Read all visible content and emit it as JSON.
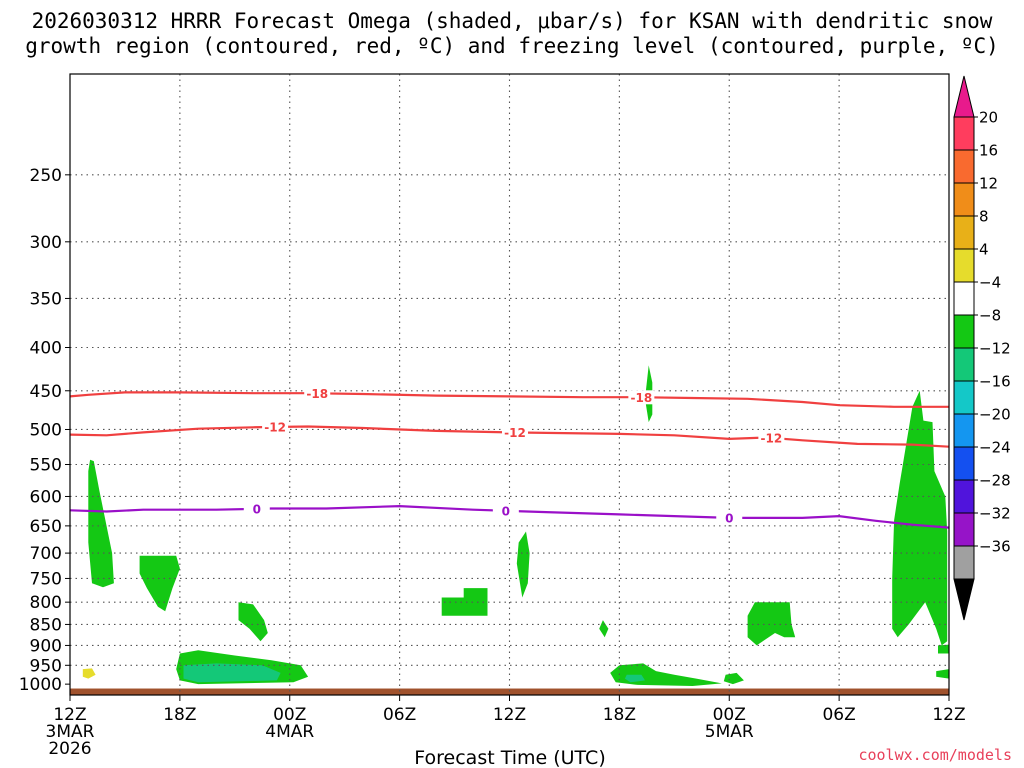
{
  "header": {
    "title_line1": "2026030312 HRRR Forecast Omega (shaded, μbar/s) for KSAN with dendritic snow",
    "title_line2": "growth region (contoured, red, ºC) and freezing level (contoured, purple, ºC)"
  },
  "footer": {
    "xlabel": "Forecast Time (UTC)",
    "credit": "coolwx.com/models"
  },
  "chart_data": {
    "type": "time-height cross section",
    "title": "2026030312 HRRR Forecast Omega (shaded, μbar/s) for KSAN with dendritic snow growth region (contoured, red, ºC) and freezing level (contoured, purple, ºC)",
    "xlabel": "Forecast Time (UTC)",
    "ylabel": "",
    "xlim_hours": [
      0,
      48
    ],
    "ylim_hPa": [
      1030,
      190
    ],
    "y_scale": "log-pressure",
    "grid": true,
    "y_ticks": [
      1000,
      950,
      900,
      850,
      800,
      750,
      700,
      650,
      600,
      550,
      500,
      450,
      400,
      350,
      300,
      250
    ],
    "x_ticks": [
      {
        "hour": 0,
        "label": "12Z",
        "sub": [
          "3MAR",
          "2026"
        ]
      },
      {
        "hour": 6,
        "label": "18Z",
        "sub": []
      },
      {
        "hour": 12,
        "label": "00Z",
        "sub": [
          "4MAR"
        ]
      },
      {
        "hour": 18,
        "label": "06Z",
        "sub": []
      },
      {
        "hour": 24,
        "label": "12Z",
        "sub": []
      },
      {
        "hour": 30,
        "label": "18Z",
        "sub": []
      },
      {
        "hour": 36,
        "label": "00Z",
        "sub": [
          "5MAR"
        ]
      },
      {
        "hour": 42,
        "label": "06Z",
        "sub": []
      },
      {
        "hour": 48,
        "label": "12Z",
        "sub": []
      }
    ],
    "colorbar": {
      "levels": [
        20,
        16,
        12,
        8,
        4,
        -4,
        -8,
        -12,
        -16,
        -20,
        -24,
        -28,
        -32,
        -36
      ],
      "colors": [
        "#ff3d5e",
        "#f96a2f",
        "#f08d19",
        "#e8b018",
        "#e6dc2c",
        "#ffffff",
        "#14c814",
        "#14c878",
        "#14c8c8",
        "#1496f0",
        "#1450f0",
        "#5014dc",
        "#9614c8",
        "#a0a0a0"
      ],
      "top_arrow_color": "#e81a8c",
      "bottom_arrow_color": "#000000"
    },
    "contours": [
      {
        "name": "-18",
        "color": "#f04040",
        "label": "-18",
        "points": [
          [
            0,
            457
          ],
          [
            1,
            455
          ],
          [
            3,
            452
          ],
          [
            6,
            452
          ],
          [
            10,
            453
          ],
          [
            13,
            453
          ],
          [
            16,
            454
          ],
          [
            20,
            456
          ],
          [
            24,
            457
          ],
          [
            28,
            458
          ],
          [
            31,
            458
          ],
          [
            34,
            459
          ],
          [
            37,
            460
          ],
          [
            40,
            464
          ],
          [
            42,
            468
          ],
          [
            45,
            470
          ],
          [
            48,
            470
          ]
        ],
        "label_hours": [
          13.5,
          31.2
        ]
      },
      {
        "name": "-12",
        "color": "#f04040",
        "label": "-12",
        "points": [
          [
            0,
            507
          ],
          [
            2,
            508
          ],
          [
            4,
            504
          ],
          [
            7,
            499
          ],
          [
            10,
            497
          ],
          [
            13,
            496
          ],
          [
            16,
            498
          ],
          [
            20,
            502
          ],
          [
            24,
            504
          ],
          [
            27,
            505
          ],
          [
            30,
            506
          ],
          [
            33,
            508
          ],
          [
            36,
            513
          ],
          [
            38,
            511
          ],
          [
            40,
            515
          ],
          [
            43,
            520
          ],
          [
            46,
            521
          ],
          [
            48,
            524
          ]
        ],
        "label_hours": [
          11.2,
          24.3,
          38.3
        ]
      },
      {
        "name": "0",
        "color": "#9a10c8",
        "label": "0",
        "points": [
          [
            0,
            623
          ],
          [
            2,
            625
          ],
          [
            4,
            622
          ],
          [
            8,
            622
          ],
          [
            11,
            620
          ],
          [
            14,
            620
          ],
          [
            18,
            616
          ],
          [
            22,
            622
          ],
          [
            26,
            626
          ],
          [
            30,
            630
          ],
          [
            33,
            633
          ],
          [
            36,
            636
          ],
          [
            40,
            636
          ],
          [
            42,
            633
          ],
          [
            44,
            641
          ],
          [
            46,
            648
          ],
          [
            48,
            653
          ]
        ],
        "label_hours": [
          10.2,
          23.8,
          36.0
        ]
      }
    ],
    "omega_shading": [
      {
        "value": -8,
        "polygon": [
          [
            1.1,
            543
          ],
          [
            1.3,
            545
          ],
          [
            1.6,
            590
          ],
          [
            2.3,
            700
          ],
          [
            2.4,
            760
          ],
          [
            1.8,
            768
          ],
          [
            1.2,
            760
          ],
          [
            1.0,
            680
          ],
          [
            1.0,
            560
          ]
        ]
      },
      {
        "value": -8,
        "polygon": [
          [
            3.8,
            705
          ],
          [
            5.8,
            705
          ],
          [
            6.0,
            730
          ],
          [
            5.6,
            770
          ],
          [
            5.2,
            820
          ],
          [
            4.8,
            810
          ],
          [
            4.2,
            770
          ],
          [
            3.8,
            740
          ]
        ]
      },
      {
        "value": -8,
        "polygon": [
          [
            9.2,
            800
          ],
          [
            10.0,
            805
          ],
          [
            10.6,
            840
          ],
          [
            10.8,
            870
          ],
          [
            10.4,
            890
          ],
          [
            9.8,
            860
          ],
          [
            9.2,
            840
          ]
        ]
      },
      {
        "value": -8,
        "polygon": [
          [
            6.0,
            920
          ],
          [
            7.0,
            912
          ],
          [
            9.0,
            925
          ],
          [
            11.0,
            937
          ],
          [
            12.6,
            950
          ],
          [
            13.0,
            980
          ],
          [
            12.2,
            995
          ],
          [
            7.0,
            1000
          ],
          [
            6.0,
            990
          ],
          [
            5.8,
            960
          ]
        ]
      },
      {
        "value": -12,
        "polygon": [
          [
            6.2,
            950
          ],
          [
            8.0,
            945
          ],
          [
            10.5,
            950
          ],
          [
            11.5,
            970
          ],
          [
            11.3,
            990
          ],
          [
            7.0,
            995
          ],
          [
            6.2,
            985
          ]
        ]
      },
      {
        "value": -8,
        "polygon": [
          [
            20.3,
            790
          ],
          [
            21.5,
            790
          ],
          [
            21.5,
            770
          ],
          [
            22.8,
            770
          ],
          [
            22.8,
            830
          ],
          [
            20.3,
            830
          ]
        ]
      },
      {
        "value": -8,
        "polygon": [
          [
            24.5,
            680
          ],
          [
            24.9,
            660
          ],
          [
            25.1,
            700
          ],
          [
            25.0,
            760
          ],
          [
            24.7,
            790
          ],
          [
            24.4,
            720
          ]
        ]
      },
      {
        "value": -8,
        "polygon": [
          [
            29.1,
            840
          ],
          [
            29.4,
            860
          ],
          [
            29.2,
            880
          ],
          [
            28.9,
            860
          ]
        ]
      },
      {
        "value": -8,
        "polygon": [
          [
            31.6,
            420
          ],
          [
            31.8,
            440
          ],
          [
            31.8,
            480
          ],
          [
            31.6,
            490
          ],
          [
            31.4,
            460
          ]
        ]
      },
      {
        "value": -8,
        "polygon": [
          [
            30.0,
            950
          ],
          [
            31.3,
            945
          ],
          [
            32.0,
            965
          ],
          [
            33.0,
            975
          ],
          [
            34.2,
            985
          ],
          [
            35.6,
            998
          ],
          [
            34.0,
            1005
          ],
          [
            31.0,
            1002
          ],
          [
            29.8,
            995
          ],
          [
            29.5,
            970
          ]
        ]
      },
      {
        "value": -12,
        "polygon": [
          [
            30.4,
            975
          ],
          [
            31.2,
            975
          ],
          [
            31.4,
            990
          ],
          [
            30.6,
            995
          ],
          [
            30.3,
            985
          ]
        ]
      },
      {
        "value": -8,
        "polygon": [
          [
            35.8,
            975
          ],
          [
            36.4,
            970
          ],
          [
            36.8,
            990
          ],
          [
            36.2,
            1000
          ],
          [
            35.7,
            992
          ]
        ]
      },
      {
        "value": -8,
        "polygon": [
          [
            37.0,
            830
          ],
          [
            37.4,
            800
          ],
          [
            39.3,
            800
          ],
          [
            39.4,
            850
          ],
          [
            39.6,
            880
          ],
          [
            39.0,
            880
          ],
          [
            38.5,
            870
          ],
          [
            37.5,
            900
          ],
          [
            37.0,
            880
          ]
        ]
      },
      {
        "value": -8,
        "polygon": [
          [
            46.6,
            488
          ],
          [
            47.1,
            490
          ],
          [
            47.2,
            560
          ],
          [
            47.8,
            600
          ],
          [
            47.9,
            660
          ],
          [
            47.9,
            890
          ],
          [
            47.6,
            900
          ],
          [
            47.3,
            860
          ],
          [
            46.7,
            800
          ],
          [
            45.8,
            850
          ],
          [
            45.2,
            880
          ],
          [
            44.9,
            860
          ],
          [
            44.9,
            750
          ],
          [
            45.0,
            640
          ],
          [
            45.3,
            580
          ],
          [
            45.6,
            530
          ],
          [
            46.0,
            470
          ],
          [
            46.4,
            450
          ]
        ]
      },
      {
        "value": -8,
        "polygon": [
          [
            47.4,
            900
          ],
          [
            48.0,
            898
          ],
          [
            48.0,
            920
          ],
          [
            47.4,
            920
          ]
        ]
      },
      {
        "value": -8,
        "polygon": [
          [
            47.3,
            965
          ],
          [
            48.0,
            960
          ],
          [
            48.0,
            985
          ],
          [
            47.3,
            980
          ]
        ]
      },
      {
        "value": 4,
        "polygon": [
          [
            0.7,
            960
          ],
          [
            1.2,
            958
          ],
          [
            1.4,
            975
          ],
          [
            1.0,
            985
          ],
          [
            0.7,
            980
          ]
        ]
      }
    ],
    "terrain": {
      "color": "#a0522d",
      "top_hPa": 1012
    }
  }
}
